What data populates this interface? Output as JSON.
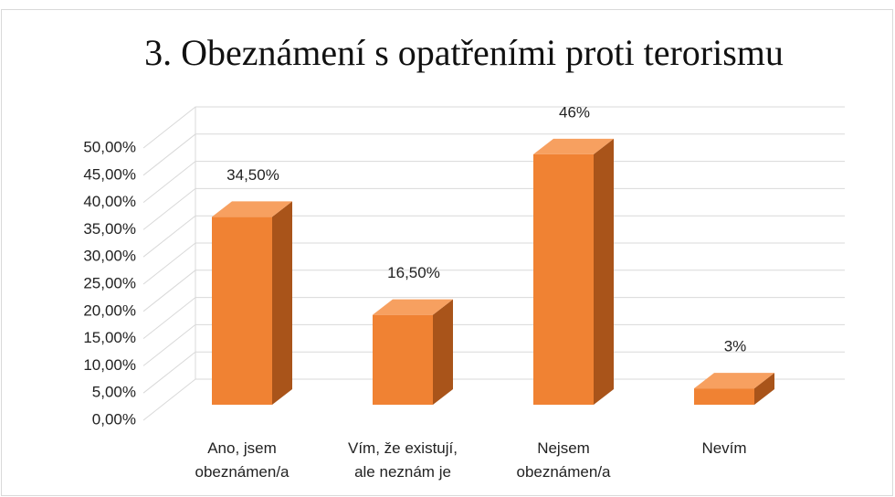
{
  "chart_data": {
    "type": "bar3d",
    "title": "3. Obeznámení s opatřeními proti terorismu",
    "categories": [
      "Ano, jsem\nobeznámen/a",
      "Vím, že existují,\nale neznám je",
      "Nejsem\nobeznámen/a",
      "Nevím"
    ],
    "values": [
      34.5,
      16.5,
      46,
      3
    ],
    "value_labels": [
      "34,50%",
      "16,50%",
      "46%",
      "3%"
    ],
    "color": "#f08233",
    "ylim": [
      0,
      50
    ],
    "yticks": [
      {
        "value": 0,
        "label": "0,00%"
      },
      {
        "value": 5,
        "label": "5,00%"
      },
      {
        "value": 10,
        "label": "10,00%"
      },
      {
        "value": 15,
        "label": "15,00%"
      },
      {
        "value": 20,
        "label": "20,00%"
      },
      {
        "value": 25,
        "label": "25,00%"
      },
      {
        "value": 30,
        "label": "30,00%"
      },
      {
        "value": 35,
        "label": "35,00%"
      },
      {
        "value": 40,
        "label": "40,00%"
      },
      {
        "value": 45,
        "label": "45,00%"
      },
      {
        "value": 50,
        "label": "50,00%"
      }
    ],
    "grid": true
  }
}
